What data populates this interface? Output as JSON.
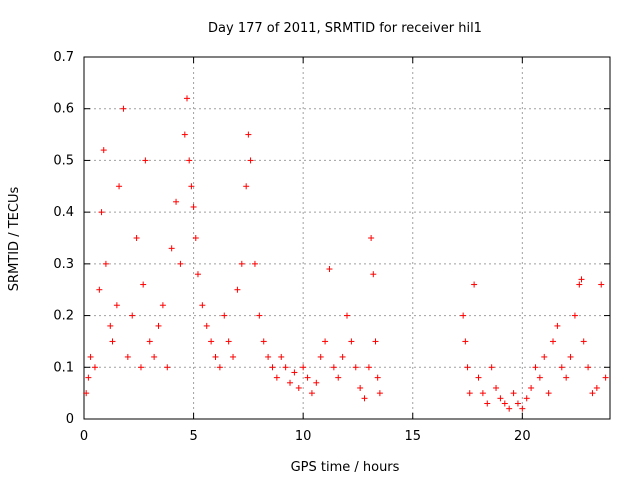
{
  "chart_data": {
    "type": "scatter",
    "title": "Day 177 of 2011, SRMTID for receiver hil1",
    "xlabel": "GPS time / hours",
    "ylabel": "SRMTID / TECUs",
    "xlim": [
      0,
      24
    ],
    "ylim": [
      0,
      0.7
    ],
    "xticks": [
      0,
      5,
      10,
      15,
      20
    ],
    "yticks": [
      0,
      0.1,
      0.2,
      0.3,
      0.4,
      0.5,
      0.6,
      0.7
    ],
    "xtick_labels": [
      "0",
      "5",
      "10",
      "15",
      "20"
    ],
    "ytick_labels": [
      "0",
      "0.1",
      "0.2",
      "0.3",
      "0.4",
      "0.5",
      "0.6",
      "0.7"
    ],
    "grid": true,
    "marker": "+",
    "color": "#ff0000",
    "series": [
      {
        "name": "SRMTID",
        "x": [
          0.1,
          0.2,
          0.3,
          0.5,
          0.7,
          0.8,
          0.9,
          1.0,
          1.2,
          1.3,
          1.5,
          1.6,
          1.8,
          2.0,
          2.2,
          2.4,
          2.6,
          2.7,
          2.8,
          3.0,
          3.2,
          3.4,
          3.6,
          3.8,
          4.0,
          4.2,
          4.4,
          4.6,
          4.7,
          4.8,
          4.9,
          5.0,
          5.1,
          5.2,
          5.4,
          5.6,
          5.8,
          6.0,
          6.2,
          6.4,
          6.6,
          6.8,
          7.0,
          7.2,
          7.4,
          7.5,
          7.6,
          7.8,
          8.0,
          8.2,
          8.4,
          8.6,
          8.8,
          9.0,
          9.2,
          9.4,
          9.6,
          9.8,
          10.0,
          10.2,
          10.4,
          10.6,
          10.8,
          11.0,
          11.2,
          11.4,
          11.6,
          11.8,
          12.0,
          12.2,
          12.4,
          12.6,
          12.8,
          13.0,
          13.1,
          13.2,
          13.3,
          13.4,
          13.5,
          17.3,
          17.4,
          17.5,
          17.6,
          17.8,
          18.0,
          18.2,
          18.4,
          18.6,
          18.8,
          19.0,
          19.2,
          19.4,
          19.6,
          19.8,
          20.0,
          20.2,
          20.4,
          20.6,
          20.8,
          21.0,
          21.2,
          21.4,
          21.6,
          21.8,
          22.0,
          22.2,
          22.4,
          22.6,
          22.7,
          22.8,
          23.0,
          23.2,
          23.4,
          23.6,
          23.8
        ],
        "y": [
          0.05,
          0.08,
          0.12,
          0.1,
          0.25,
          0.4,
          0.52,
          0.3,
          0.18,
          0.15,
          0.22,
          0.45,
          0.6,
          0.12,
          0.2,
          0.35,
          0.1,
          0.26,
          0.5,
          0.15,
          0.12,
          0.18,
          0.22,
          0.1,
          0.33,
          0.42,
          0.3,
          0.55,
          0.62,
          0.5,
          0.45,
          0.41,
          0.35,
          0.28,
          0.22,
          0.18,
          0.15,
          0.12,
          0.1,
          0.2,
          0.15,
          0.12,
          0.25,
          0.3,
          0.45,
          0.55,
          0.5,
          0.3,
          0.2,
          0.15,
          0.12,
          0.1,
          0.08,
          0.12,
          0.1,
          0.07,
          0.09,
          0.06,
          0.1,
          0.08,
          0.05,
          0.07,
          0.12,
          0.15,
          0.29,
          0.1,
          0.08,
          0.12,
          0.2,
          0.15,
          0.1,
          0.06,
          0.04,
          0.1,
          0.35,
          0.28,
          0.15,
          0.08,
          0.05,
          0.2,
          0.15,
          0.1,
          0.05,
          0.26,
          0.08,
          0.05,
          0.03,
          0.1,
          0.06,
          0.04,
          0.03,
          0.02,
          0.05,
          0.03,
          0.02,
          0.04,
          0.06,
          0.1,
          0.08,
          0.12,
          0.05,
          0.15,
          0.18,
          0.1,
          0.08,
          0.12,
          0.2,
          0.26,
          0.27,
          0.15,
          0.1,
          0.05,
          0.06,
          0.26,
          0.08
        ]
      }
    ]
  }
}
